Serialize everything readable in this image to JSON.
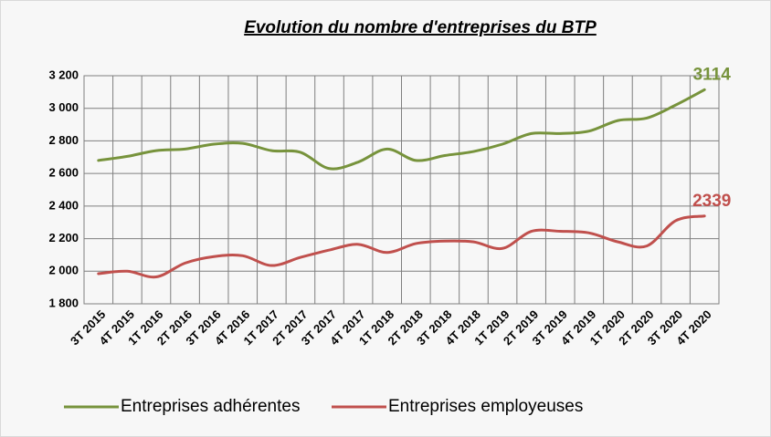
{
  "chart_data": {
    "type": "line",
    "title": "Evolution du nombre d'entreprises du BTP",
    "categories": [
      "3T 2015",
      "4T 2015",
      "1T 2016",
      "2T 2016",
      "3T 2016",
      "4T 2016",
      "1T 2017",
      "2T 2017",
      "3T 2017",
      "4T 2017",
      "1T 2018",
      "2T 2018",
      "3T 2018",
      "4T 2018",
      "1T 2019",
      "2T 2019",
      "3T 2019",
      "4T 2019",
      "1T 2020",
      "2T 2020",
      "3T 2020",
      "4T 2020"
    ],
    "series": [
      {
        "name": "Entreprises adhérentes",
        "color": "#77933c",
        "values": [
          2680,
          2705,
          2740,
          2750,
          2780,
          2785,
          2740,
          2730,
          2630,
          2670,
          2750,
          2680,
          2710,
          2735,
          2780,
          2845,
          2845,
          2860,
          2925,
          2940,
          3020,
          3114
        ]
      },
      {
        "name": "Entreprises employeuses",
        "color": "#c0504d",
        "values": [
          1985,
          2000,
          1965,
          2050,
          2090,
          2095,
          2035,
          2085,
          2130,
          2165,
          2115,
          2170,
          2185,
          2180,
          2140,
          2245,
          2245,
          2235,
          2180,
          2155,
          2310,
          2339
        ]
      }
    ],
    "ylim": [
      1800,
      3200
    ],
    "yticks": [
      {
        "value": 1800,
        "label": "1 800"
      },
      {
        "value": 2000,
        "label": "2 000"
      },
      {
        "value": 2200,
        "label": "2 200"
      },
      {
        "value": 2400,
        "label": "2 400"
      },
      {
        "value": 2600,
        "label": "2 600"
      },
      {
        "value": 2800,
        "label": "2 800"
      },
      {
        "value": 3000,
        "label": "3 000"
      },
      {
        "value": 3200,
        "label": "3 200"
      }
    ],
    "grid": true,
    "legend": "bottom"
  }
}
